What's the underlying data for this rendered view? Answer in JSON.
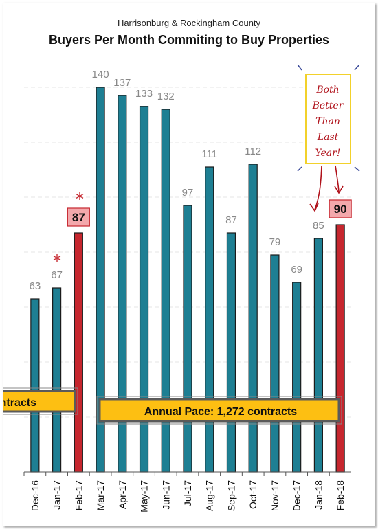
{
  "chart_data": {
    "type": "bar",
    "title": "Buyers Per Month Commiting to Buy Properties",
    "subtitle": "Harrisonburg & Rockingham County",
    "categories": [
      "Dec-16",
      "Jan-17",
      "Feb-17",
      "Mar-17",
      "Apr-17",
      "May-17",
      "Jun-17",
      "Jul-17",
      "Aug-17",
      "Sep-17",
      "Oct-17",
      "Nov-17",
      "Dec-17",
      "Jan-18",
      "Feb-18"
    ],
    "values": [
      63,
      67,
      87,
      140,
      137,
      133,
      132,
      97,
      111,
      87,
      112,
      79,
      69,
      85,
      90
    ],
    "highlighted": [
      "Feb-17",
      "Feb-18"
    ],
    "ylim": [
      0,
      160
    ],
    "grid": true,
    "xlabel": "",
    "ylabel": ""
  },
  "annotations": {
    "pace_left": "ntracts",
    "pace_right": "Annual Pace: 1,272 contracts",
    "note_lines": [
      "Both",
      "Better",
      "Than",
      "Last",
      "Year!"
    ],
    "asterisk_1": "*",
    "asterisk_2": "*"
  },
  "colors": {
    "bar": "#1e7f93",
    "bar_highlight": "#c6262e",
    "value_box": "#f3a8ac",
    "pace_fill": "#fdbf12",
    "note_box": "#f2d12b",
    "note_text": "#b0121b",
    "grid": "#e4e4e4"
  }
}
